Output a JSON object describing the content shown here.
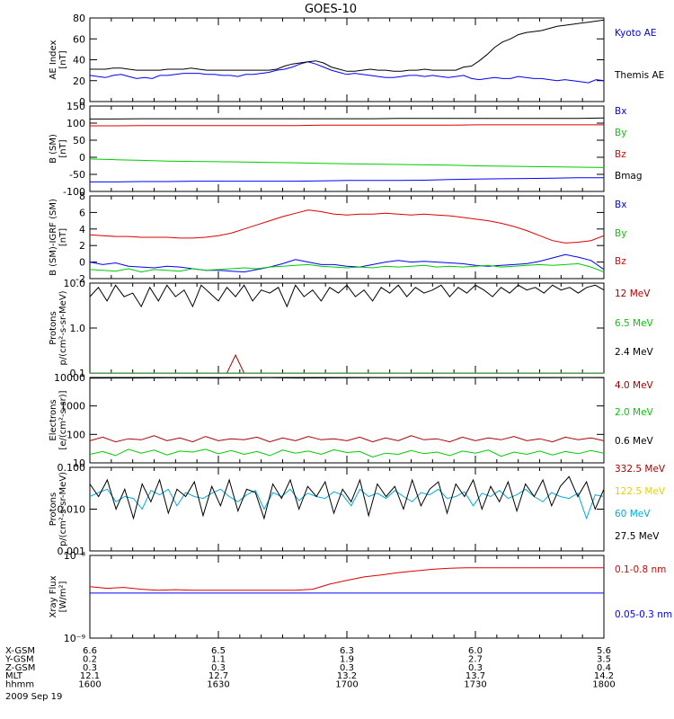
{
  "title": "GOES-10",
  "chart_data": [
    {
      "type": "line",
      "ylabel": "AE Index [nT]",
      "ylim": [
        0,
        80
      ],
      "yticks": [
        "0",
        "20",
        "40",
        "60",
        "80"
      ],
      "series": [
        {
          "name": "Kyoto AE",
          "color": "#0000ff",
          "values": [
            25,
            24,
            23,
            25,
            26,
            24,
            22,
            23,
            22,
            25,
            25,
            26,
            27,
            27,
            27,
            26,
            26,
            25,
            25,
            24,
            26,
            26,
            27,
            28,
            30,
            31,
            33,
            36,
            38,
            36,
            33,
            30,
            28,
            26,
            27,
            26,
            25,
            24,
            23,
            23,
            24,
            25,
            25,
            24,
            25,
            24,
            23,
            24,
            25,
            22,
            21,
            22,
            23,
            22,
            22,
            24,
            23,
            22,
            22,
            21,
            20,
            21,
            20,
            19,
            18,
            21,
            20
          ]
        },
        {
          "name": "Themis AE",
          "color": "#000000",
          "values": [
            31,
            31,
            31,
            32,
            32,
            31,
            30,
            30,
            30,
            30,
            31,
            31,
            31,
            32,
            31,
            30,
            30,
            30,
            30,
            30,
            30,
            30,
            30,
            30,
            31,
            34,
            36,
            37,
            38,
            39,
            37,
            33,
            31,
            29,
            29,
            30,
            31,
            30,
            30,
            29,
            29,
            30,
            30,
            31,
            30,
            30,
            30,
            30,
            33,
            34,
            39,
            45,
            52,
            57,
            60,
            64,
            66,
            67,
            68,
            70,
            72,
            73,
            74,
            75,
            76,
            77,
            78
          ]
        }
      ]
    },
    {
      "type": "line",
      "ylabel": "B (SM) [nT]",
      "ylim": [
        -100,
        150
      ],
      "yticks": [
        "-100",
        "-50",
        "0",
        "50",
        "100",
        "150"
      ],
      "series": [
        {
          "name": "Bx",
          "color": "#0000ff",
          "values": [
            -72,
            -72,
            -71,
            -71,
            -70,
            -70,
            -70,
            -70,
            -70,
            -69,
            -68,
            -68,
            -68,
            -67,
            -65,
            -64,
            -63,
            -62,
            -61,
            -60,
            -60
          ]
        },
        {
          "name": "By",
          "color": "#00cc00",
          "values": [
            -5,
            -7,
            -9,
            -11,
            -12,
            -13,
            -14,
            -15,
            -16,
            -18,
            -19,
            -20,
            -21,
            -22,
            -23,
            -25,
            -26,
            -27,
            -28,
            -29,
            -30
          ]
        },
        {
          "name": "Bz",
          "color": "#dd0000",
          "values": [
            92,
            92,
            93,
            93,
            93,
            93,
            93,
            93,
            93,
            94,
            94,
            94,
            94,
            94,
            94,
            95,
            95,
            95,
            95,
            95,
            95
          ]
        },
        {
          "name": "Bmag",
          "color": "#000000",
          "values": [
            112,
            112,
            113,
            113,
            113,
            113,
            113,
            113,
            113,
            113,
            113,
            113,
            114,
            114,
            114,
            114,
            114,
            114,
            114,
            114,
            115
          ]
        }
      ]
    },
    {
      "type": "line",
      "ylabel": "B (SM)-IGRF (SM) [nT]",
      "ylim": [
        -2,
        8
      ],
      "yticks": [
        "-2",
        "0",
        "2",
        "4",
        "6",
        "8"
      ],
      "series": [
        {
          "name": "Bx",
          "color": "#0000ff",
          "values": [
            0.0,
            -0.3,
            -0.1,
            -0.5,
            -0.6,
            -0.7,
            -0.5,
            -0.6,
            -0.8,
            -1.0,
            -1.0,
            -1.1,
            -1.2,
            -0.9,
            -0.6,
            -0.2,
            0.3,
            0.0,
            -0.3,
            -0.3,
            -0.5,
            -0.6,
            -0.3,
            0.0,
            0.2,
            0.0,
            0.1,
            0.0,
            -0.1,
            -0.2,
            -0.4,
            -0.5,
            -0.4,
            -0.3,
            -0.2,
            0.1,
            0.5,
            0.9,
            0.6,
            0.2,
            -0.9
          ]
        },
        {
          "name": "By",
          "color": "#00cc00",
          "values": [
            -0.9,
            -1.0,
            -1.1,
            -0.8,
            -1.2,
            -0.9,
            -1.0,
            -1.1,
            -0.8,
            -1.0,
            -0.9,
            -0.8,
            -0.7,
            -0.8,
            -0.6,
            -0.5,
            -0.4,
            -0.3,
            -0.5,
            -0.6,
            -0.7,
            -0.6,
            -0.7,
            -0.5,
            -0.6,
            -0.5,
            -0.4,
            -0.6,
            -0.5,
            -0.6,
            -0.5,
            -0.4,
            -0.6,
            -0.5,
            -0.4,
            -0.3,
            -0.4,
            -0.3,
            -0.2,
            -0.6,
            -1.2
          ]
        },
        {
          "name": "Bz",
          "color": "#dd0000",
          "values": [
            3.3,
            3.2,
            3.1,
            3.1,
            3.0,
            3.0,
            3.0,
            2.9,
            2.9,
            3.0,
            3.2,
            3.5,
            4.0,
            4.5,
            5.0,
            5.5,
            5.9,
            6.3,
            6.1,
            5.8,
            5.7,
            5.8,
            5.8,
            5.9,
            5.8,
            5.7,
            5.8,
            5.7,
            5.6,
            5.4,
            5.2,
            5.0,
            4.7,
            4.3,
            3.8,
            3.2,
            2.6,
            2.3,
            2.4,
            2.6,
            3.2
          ]
        }
      ]
    },
    {
      "type": "line",
      "ylabel": "Protons p/(cm²-s-sr-MeV)",
      "yscale": "log",
      "ylim": [
        0.1,
        10
      ],
      "yticks": [
        "0.1",
        "1.0",
        "10.0"
      ],
      "series": [
        {
          "name": "12 MeV",
          "color": "#aa0000",
          "values": [
            0.1,
            0.1,
            0.1,
            0.1,
            0.1,
            0.1,
            0.1,
            0.1,
            0.1,
            0.1,
            0.1,
            0.1,
            0.1,
            0.1,
            0.1,
            0.1,
            0.1,
            0.25,
            0.1,
            0.1,
            0.1,
            0.1,
            0.1,
            0.1,
            0.1,
            0.1,
            0.1,
            0.1,
            0.1,
            0.1,
            0.1,
            0.1,
            0.1,
            0.1,
            0.1,
            0.1,
            0.1,
            0.1,
            0.1,
            0.1,
            0.1,
            0.1,
            0.1,
            0.1,
            0.1,
            0.1,
            0.1,
            0.1,
            0.1,
            0.1,
            0.1,
            0.1,
            0.1,
            0.1,
            0.1,
            0.1,
            0.1,
            0.1,
            0.1,
            0.1,
            0.1
          ]
        },
        {
          "name": "6.5 MeV",
          "color": "#00cc00",
          "values": [
            0.1,
            0.1,
            0.1,
            0.1,
            0.1,
            0.1,
            0.1,
            0.1,
            0.1,
            0.1,
            0.1,
            0.1,
            0.1,
            0.1,
            0.1,
            0.1,
            0.1,
            0.1,
            0.1,
            0.1,
            0.1,
            0.1,
            0.1,
            0.1,
            0.1,
            0.1,
            0.1,
            0.1,
            0.1,
            0.1,
            0.1,
            0.1,
            0.1,
            0.1,
            0.1,
            0.1,
            0.1,
            0.1,
            0.1,
            0.1,
            0.1,
            0.1,
            0.1,
            0.1,
            0.1,
            0.1,
            0.1,
            0.1,
            0.1,
            0.1,
            0.1,
            0.1,
            0.1,
            0.1,
            0.1,
            0.1,
            0.1,
            0.1,
            0.1,
            0.1,
            0.1
          ]
        },
        {
          "name": "2.4 MeV",
          "color": "#000000",
          "values": [
            5,
            8,
            4,
            9,
            5,
            6,
            3,
            8,
            4,
            9,
            5,
            7,
            3,
            9,
            6,
            4,
            8,
            5,
            9,
            4,
            7,
            6,
            8,
            3,
            9,
            5,
            7,
            4,
            8,
            6,
            9,
            5,
            7,
            4,
            8,
            6,
            9,
            5,
            8,
            6,
            7,
            9,
            5,
            8,
            6,
            9,
            7,
            5,
            8,
            6,
            9,
            7,
            8,
            6,
            9,
            7,
            8,
            6,
            8,
            9,
            7
          ]
        }
      ]
    },
    {
      "type": "line",
      "ylabel": "Electrons [e/(cm²-s-sr)]",
      "yscale": "log",
      "ylim": [
        10,
        10000
      ],
      "yticks": [
        "10",
        "100",
        "1000",
        "10000"
      ],
      "series": [
        {
          "name": "4.0 MeV",
          "color": "#aa0000",
          "values": [
            60,
            80,
            55,
            70,
            65,
            90,
            60,
            75,
            55,
            85,
            60,
            70,
            65,
            80,
            55,
            75,
            60,
            85,
            65,
            70,
            60,
            80,
            55,
            75,
            60,
            90,
            65,
            70,
            55,
            80,
            60,
            75,
            65,
            85,
            60,
            70,
            55,
            80,
            65,
            75,
            60
          ]
        },
        {
          "name": "2.0 MeV",
          "color": "#00cc00",
          "values": [
            20,
            25,
            18,
            30,
            22,
            28,
            19,
            26,
            24,
            30,
            21,
            27,
            20,
            25,
            18,
            28,
            22,
            26,
            20,
            29,
            23,
            25,
            16,
            22,
            20,
            27,
            21,
            24,
            18,
            26,
            22,
            28,
            17,
            24,
            20,
            26,
            19,
            25,
            21,
            27,
            22
          ]
        },
        {
          "name": "0.6 MeV",
          "color": "#000000",
          "values": [
            9500,
            9600,
            9550,
            9700,
            9650,
            9600,
            9700,
            9750,
            9600,
            9650,
            9700,
            9800,
            9750,
            9700,
            9800,
            9850,
            9800,
            9750,
            9850,
            9900,
            9850
          ]
        }
      ]
    },
    {
      "type": "line",
      "ylabel": "Protons p/(cm²-s-sr-MeV)",
      "yscale": "log",
      "ylim": [
        0.001,
        0.1
      ],
      "yticks": [
        "0.001",
        "0.010",
        "0.100"
      ],
      "series": [
        {
          "name": "332.5 MeV",
          "color": "#aa0000",
          "values": []
        },
        {
          "name": "122.5 MeV",
          "color": "#e8d000",
          "values": []
        },
        {
          "name": "60 MeV",
          "color": "#00aadd",
          "values": [
            0.02,
            0.025,
            0.03,
            0.015,
            0.02,
            0.018,
            0.01,
            0.028,
            0.022,
            0.03,
            0.012,
            0.025,
            0.02,
            0.018,
            0.024,
            0.03,
            0.02,
            0.015,
            0.022,
            0.028,
            0.01,
            0.025,
            0.02,
            0.03,
            0.016,
            0.024,
            0.02,
            0.018,
            0.026,
            0.022,
            0.012,
            0.03,
            0.02,
            0.024,
            0.018,
            0.028,
            0.02,
            0.015,
            0.025,
            0.022,
            0.03,
            0.018,
            0.02,
            0.026,
            0.012,
            0.024,
            0.02,
            0.028,
            0.018,
            0.022,
            0.03,
            0.02,
            0.015,
            0.025,
            0.02,
            0.018,
            0.024,
            0.006,
            0.022,
            0.02
          ]
        },
        {
          "name": "27.5 MeV",
          "color": "#000000",
          "values": [
            0.04,
            0.02,
            0.05,
            0.01,
            0.03,
            0.006,
            0.04,
            0.015,
            0.05,
            0.008,
            0.03,
            0.02,
            0.045,
            0.007,
            0.035,
            0.012,
            0.05,
            0.009,
            0.03,
            0.025,
            0.006,
            0.04,
            0.018,
            0.05,
            0.01,
            0.035,
            0.02,
            0.045,
            0.008,
            0.03,
            0.015,
            0.05,
            0.007,
            0.04,
            0.02,
            0.035,
            0.01,
            0.05,
            0.012,
            0.03,
            0.045,
            0.008,
            0.04,
            0.02,
            0.05,
            0.01,
            0.035,
            0.015,
            0.045,
            0.009,
            0.04,
            0.02,
            0.05,
            0.012,
            0.035,
            0.06,
            0.02,
            0.045,
            0.01,
            0.03
          ]
        }
      ]
    },
    {
      "type": "line",
      "ylabel": "Xray Flux [W/m²]",
      "yscale": "log",
      "ylim": [
        1e-09,
        1e-08
      ],
      "yticks": [
        "10⁻⁹",
        "10⁻⁸"
      ],
      "series": [
        {
          "name": "0.1-0.8 nm",
          "color": "#dd0000",
          "values": [
            4.2e-09,
            4e-09,
            4.1e-09,
            3.9e-09,
            3.8e-09,
            3.85e-09,
            3.8e-09,
            3.8e-09,
            3.8e-09,
            3.8e-09,
            3.8e-09,
            3.8e-09,
            3.8e-09,
            3.9e-09,
            4.5e-09,
            5e-09,
            5.5e-09,
            5.8e-09,
            6.2e-09,
            6.5e-09,
            6.8e-09,
            7e-09,
            7.1e-09,
            7.1e-09,
            7.1e-09,
            7.1e-09,
            7.1e-09,
            7.1e-09,
            7.1e-09,
            7.1e-09,
            7.1e-09
          ]
        },
        {
          "name": "0.05-0.3 nm",
          "color": "#0000ff",
          "values": [
            3.5e-09,
            3.5e-09,
            3.5e-09,
            3.5e-09,
            3.5e-09,
            3.5e-09,
            3.5e-09,
            3.5e-09,
            3.5e-09,
            3.5e-09,
            3.5e-09,
            3.5e-09,
            3.5e-09,
            3.5e-09,
            3.5e-09,
            3.5e-09,
            3.5e-09,
            3.5e-09,
            3.5e-09,
            3.5e-09,
            3.5e-09,
            3.5e-09,
            3.5e-09,
            3.5e-09,
            3.5e-09,
            3.5e-09,
            3.5e-09,
            3.5e-09,
            3.5e-09,
            3.5e-09,
            3.5e-09
          ]
        }
      ]
    }
  ],
  "ephemeris": {
    "rows": [
      {
        "label": "X-GSM",
        "values": [
          "6.6",
          "6.5",
          "6.3",
          "6.0",
          "5.6"
        ]
      },
      {
        "label": "Y-GSM",
        "values": [
          "0.2",
          "1.1",
          "1.9",
          "2.7",
          "3.5"
        ]
      },
      {
        "label": "Z-GSM",
        "values": [
          "0.3",
          "0.3",
          "0.3",
          "0.3",
          "0.4"
        ]
      },
      {
        "label": "MLT",
        "values": [
          "12.1",
          "12.7",
          "13.2",
          "13.7",
          "14.2"
        ]
      },
      {
        "label": "hhmm",
        "values": [
          "1600",
          "1630",
          "1700",
          "1730",
          "1800"
        ]
      }
    ],
    "date": "2009 Sep 19"
  }
}
